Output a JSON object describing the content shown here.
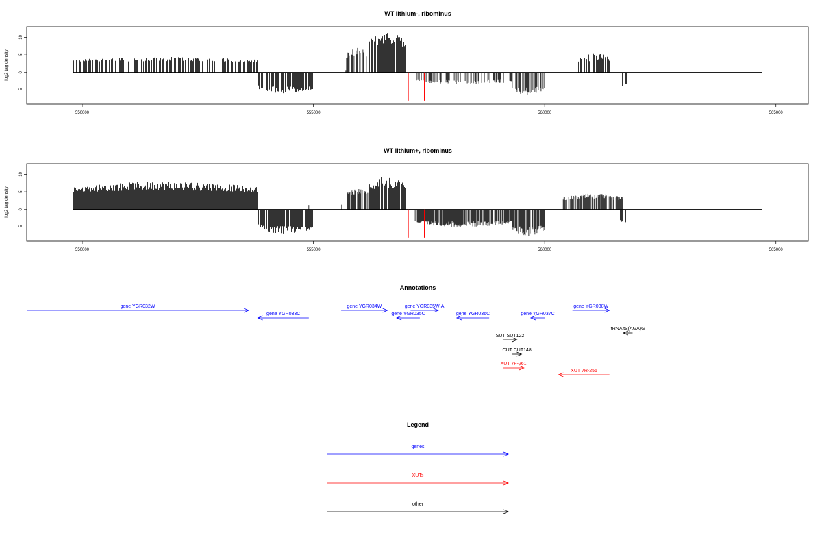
{
  "colors": {
    "forward": "#000000",
    "negative_strand": "#000000",
    "artifact": "#ff0000",
    "gene": "#0000ff",
    "xut": "#ff0000",
    "other": "#000000"
  },
  "chart_data": [
    {
      "type": "bar",
      "title": "WT lithium-, ribominus",
      "ylabel": "log2 tag density",
      "xlim": [
        548800,
        565700
      ],
      "ylim": [
        -9,
        13
      ],
      "xticks": [
        "550000",
        "555000",
        "560000",
        "565000"
      ],
      "yticks": [
        "10",
        "5",
        "0",
        "-5"
      ],
      "profile": [
        {
          "x": [
            549800,
            553800
          ],
          "y": [
            2.5,
            4.5
          ],
          "strand": "+",
          "density": 0.55
        },
        {
          "x": [
            553800,
            555000
          ],
          "y": [
            -3,
            -6
          ],
          "strand": "-",
          "density": 0.7
        },
        {
          "x": [
            555700,
            556200
          ],
          "y": [
            3,
            7
          ],
          "strand": "+",
          "density": 0.5
        },
        {
          "x": [
            556200,
            557000
          ],
          "y": [
            6,
            11.5
          ],
          "strand": "+",
          "density": 0.9
        },
        {
          "x": [
            557200,
            559300
          ],
          "y": [
            -1.5,
            -3.5
          ],
          "strand": "-",
          "density": 0.35
        },
        {
          "x": [
            559300,
            560000
          ],
          "y": [
            -3,
            -6.5
          ],
          "strand": "-",
          "density": 0.6
        },
        {
          "x": [
            560700,
            561500
          ],
          "y": [
            2,
            5.5
          ],
          "strand": "+",
          "density": 0.6
        },
        {
          "x": [
            561500,
            561800
          ],
          "y": [
            -2,
            -4.5
          ],
          "strand": "-",
          "density": 0.3
        }
      ],
      "red_bars": [
        {
          "x": 557050,
          "y": -8
        },
        {
          "x": 557400,
          "y": -8
        }
      ]
    },
    {
      "type": "bar",
      "title": "WT lithium+, ribominus",
      "ylabel": "log2 tag density",
      "xlim": [
        548800,
        565700
      ],
      "ylim": [
        -9,
        13
      ],
      "xticks": [
        "550000",
        "555000",
        "560000",
        "565000"
      ],
      "yticks": [
        "10",
        "5",
        "0",
        "-5"
      ],
      "profile": [
        {
          "x": [
            549800,
            553800
          ],
          "y": [
            4,
            8
          ],
          "strand": "+",
          "density": 1.0
        },
        {
          "x": [
            553800,
            555000
          ],
          "y": [
            -3.5,
            -7
          ],
          "strand": "-",
          "density": 0.9
        },
        {
          "x": [
            555700,
            556200
          ],
          "y": [
            3,
            6
          ],
          "strand": "+",
          "density": 0.8
        },
        {
          "x": [
            556200,
            557000
          ],
          "y": [
            4,
            9.5
          ],
          "strand": "+",
          "density": 0.9
        },
        {
          "x": [
            557200,
            559300
          ],
          "y": [
            -2.5,
            -5
          ],
          "strand": "-",
          "density": 0.8
        },
        {
          "x": [
            559300,
            560000
          ],
          "y": [
            -3.5,
            -7.5
          ],
          "strand": "-",
          "density": 0.8
        },
        {
          "x": [
            560400,
            561700
          ],
          "y": [
            2,
            4.5
          ],
          "strand": "+",
          "density": 0.8
        },
        {
          "x": [
            561500,
            561800
          ],
          "y": [
            -2,
            -4.5
          ],
          "strand": "-",
          "density": 0.3
        }
      ],
      "red_bars": [
        {
          "x": 557050,
          "y": -8
        },
        {
          "x": 557400,
          "y": -8
        }
      ]
    },
    {
      "type": "table",
      "title": "Annotations",
      "features": [
        {
          "label": "gene YGR032W",
          "start": 548700,
          "end": 553600,
          "strand": "+",
          "kind": "gene",
          "row": 0
        },
        {
          "label": "gene YGR033C",
          "start": 553800,
          "end": 554900,
          "strand": "-",
          "kind": "gene",
          "row": 1
        },
        {
          "label": "gene YGR034W",
          "start": 555600,
          "end": 556600,
          "strand": "+",
          "kind": "gene",
          "row": 0
        },
        {
          "label": "gene YGR035W-A",
          "start": 557100,
          "end": 557700,
          "strand": "+",
          "kind": "gene",
          "row": 0
        },
        {
          "label": "gene YGR035C",
          "start": 556800,
          "end": 557300,
          "strand": "-",
          "kind": "gene",
          "row": 1
        },
        {
          "label": "gene YGR036C",
          "start": 558100,
          "end": 558800,
          "strand": "-",
          "kind": "gene",
          "row": 1
        },
        {
          "label": "gene YGR037C",
          "start": 559700,
          "end": 560000,
          "strand": "-",
          "kind": "gene",
          "row": 1
        },
        {
          "label": "gene YGR038W",
          "start": 560600,
          "end": 561400,
          "strand": "+",
          "kind": "gene",
          "row": 0
        },
        {
          "label": "tRNA tS(AGA)G",
          "start": 561700,
          "end": 561900,
          "strand": "-",
          "kind": "other",
          "row": 2
        },
        {
          "label": "SUT SUT122",
          "start": 559100,
          "end": 559400,
          "strand": "+",
          "kind": "other",
          "row": 3
        },
        {
          "label": "CUT CUT148",
          "start": 559300,
          "end": 559500,
          "strand": "+",
          "kind": "other",
          "row": 4
        },
        {
          "label": "XUT 7F-261",
          "start": 559100,
          "end": 559550,
          "strand": "+",
          "kind": "xut",
          "row": 5
        },
        {
          "label": "XUT 7R-255",
          "start": 560300,
          "end": 561400,
          "strand": "-",
          "kind": "xut",
          "row": 6
        }
      ]
    }
  ],
  "legend": {
    "title": "Legend",
    "items": [
      {
        "label": "genes",
        "kind": "gene"
      },
      {
        "label": "XUTs",
        "kind": "xut"
      },
      {
        "label": "other",
        "kind": "other"
      }
    ]
  }
}
